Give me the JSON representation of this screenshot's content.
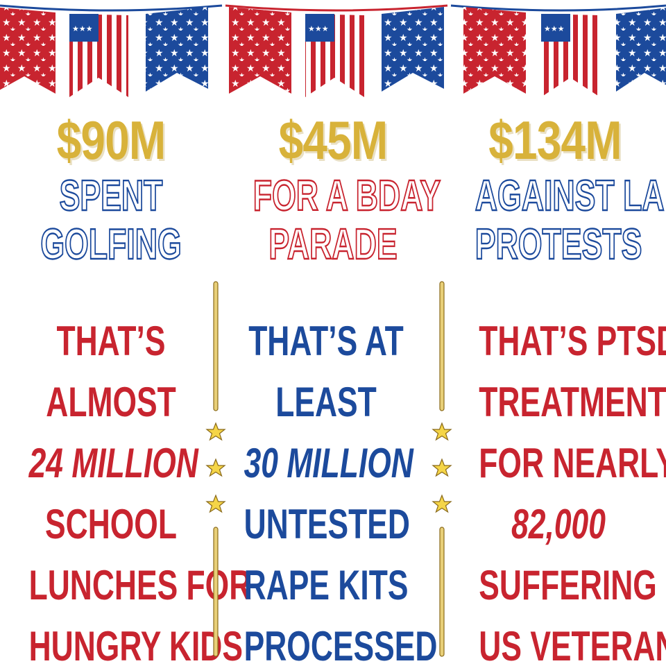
{
  "colors": {
    "red": "#c8242f",
    "blue": "#1c4a9c",
    "gold": "#d8b23a",
    "white": "#ffffff"
  },
  "decor": {
    "bunting": "american-flag-bunting",
    "divider_icon": "star-icon"
  },
  "columns": [
    {
      "amount": "$90M",
      "subhead": [
        "SPENT",
        "GOLFING"
      ],
      "lines": [
        "THAT’S",
        "ALMOST",
        "24 MILLION",
        "SCHOOL",
        "LUNCHES FOR",
        "HUNGRY KIDS"
      ]
    },
    {
      "amount": "$45M",
      "subhead": [
        "FOR A BDAY",
        "PARADE"
      ],
      "lines": [
        "THAT’S AT",
        "LEAST",
        "30 MILLION",
        "UNTESTED",
        "RAPE KITS",
        "PROCESSED"
      ]
    },
    {
      "amount": "$134M",
      "subhead": [
        "AGAINST LA",
        "PROTESTS"
      ],
      "lines": [
        "THAT’S PTSD",
        "TREATMENT",
        "FOR NEARLY",
        "82,000",
        "SUFFERING",
        "US VETERANS"
      ]
    }
  ]
}
